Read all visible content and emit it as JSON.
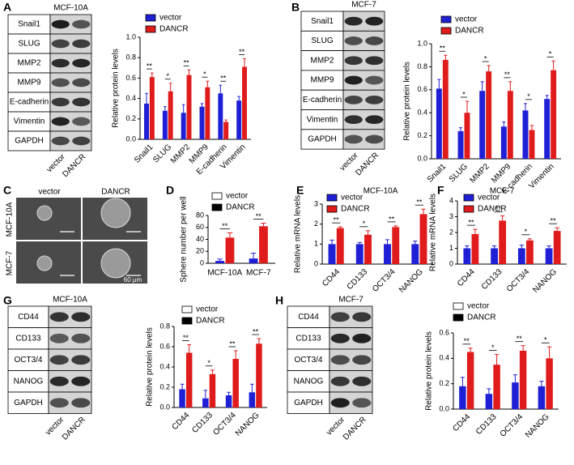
{
  "blots": [
    {
      "panel": "A",
      "title": "MCF-10A",
      "rows": [
        "Snail1",
        "SLUG",
        "MMP2",
        "MMP9",
        "E-cadherin",
        "Vimentin",
        "GAPDH"
      ],
      "lanes": [
        "vector",
        "DANCR"
      ]
    },
    {
      "panel": "B",
      "title": "MCF-7",
      "rows": [
        "Snail1",
        "SLUG",
        "MMP2",
        "MMP9",
        "E-cadherin",
        "Vimentin",
        "GAPDH"
      ],
      "lanes": [
        "vector",
        "DANCR"
      ]
    },
    {
      "panel": "G",
      "title": "MCF-10A",
      "rows": [
        "CD44",
        "CD133",
        "OCT3/4",
        "NANOG",
        "GAPDH"
      ],
      "lanes": [
        "vector",
        "DANCR"
      ]
    },
    {
      "panel": "H",
      "title": "MCF-7",
      "rows": [
        "CD44",
        "CD133",
        "OCT3/4",
        "NANOG",
        "GAPDH"
      ],
      "lanes": [
        "vector",
        "DANCR"
      ]
    }
  ],
  "images": {
    "panel": "C",
    "columns": [
      "vector",
      "DANCR"
    ],
    "rows": [
      "MCF-10A",
      "MCF-7"
    ],
    "scale_bar": "60 μm"
  },
  "chart_data": [
    {
      "type": "bar",
      "ylabel": "Relative protein levels",
      "rotated_labels": true,
      "categories": [
        "Snail1",
        "SLUG",
        "MMP2",
        "MMP9",
        "E-cadherin",
        "Vimentin"
      ],
      "series": [
        {
          "name": "vector",
          "color": "#1f1fd6",
          "values": [
            0.35,
            0.28,
            0.26,
            0.32,
            0.45,
            0.38
          ],
          "errors": [
            0.1,
            0.04,
            0.08,
            0.03,
            0.08,
            0.04
          ]
        },
        {
          "name": "DANCR",
          "color": "#e01b1b",
          "values": [
            0.61,
            0.47,
            0.63,
            0.51,
            0.17,
            0.71
          ],
          "errors": [
            0.04,
            0.08,
            0.05,
            0.06,
            0.02,
            0.08
          ]
        }
      ],
      "significance": [
        "**",
        "*",
        "**",
        "*",
        "**",
        "**"
      ],
      "ylim": [
        0,
        1
      ],
      "yticks": [
        {
          "value": 0,
          "label": "0.0"
        },
        0.2,
        0.4,
        0.6,
        0.8,
        {
          "value": 1,
          "label": "1.0"
        }
      ]
    },
    {
      "type": "bar",
      "ylabel": "Relative protein levels",
      "rotated_labels": true,
      "categories": [
        "Snail1",
        "SLUG",
        "MMP2",
        "MMP9",
        "E-cadherin",
        "Vimentin"
      ],
      "series": [
        {
          "name": "vector",
          "color": "#1f1fd6",
          "values": [
            0.61,
            0.24,
            0.59,
            0.28,
            0.42,
            0.52
          ],
          "errors": [
            0.08,
            0.03,
            0.08,
            0.04,
            0.06,
            0.03
          ]
        },
        {
          "name": "DANCR",
          "color": "#e01b1b",
          "values": [
            0.86,
            0.4,
            0.76,
            0.59,
            0.25,
            0.77
          ],
          "errors": [
            0.04,
            0.1,
            0.05,
            0.08,
            0.04,
            0.08
          ]
        }
      ],
      "significance": [
        "**",
        "*",
        "*",
        "**",
        "*",
        "*"
      ],
      "ylim": [
        0,
        1
      ],
      "yticks": [
        {
          "value": 0,
          "label": "0.0"
        },
        0.2,
        0.4,
        0.6,
        0.8,
        {
          "value": 1,
          "label": "1.0"
        }
      ]
    },
    {
      "type": "bar",
      "panel": "D",
      "ylabel": "Sphere number per well",
      "rotated_labels": false,
      "categories": [
        "MCF-10A",
        "MCF-7"
      ],
      "series": [
        {
          "name": "vector",
          "color": "#1f1fd6",
          "legend_color": "#ffffff",
          "values": [
            4,
            8
          ],
          "errors": [
            3,
            9
          ]
        },
        {
          "name": "DANCR",
          "color": "#e01b1b",
          "legend_color": "#000000",
          "values": [
            43,
            62
          ],
          "errors": [
            8,
            5
          ]
        }
      ],
      "significance": [
        "**",
        "**"
      ],
      "ylim": [
        0,
        80
      ],
      "yticks": [
        0,
        20,
        40,
        60,
        80
      ]
    },
    {
      "type": "bar",
      "panel": "E",
      "title": "MCF-10A",
      "ylabel": "Relative mRNA levels",
      "rotated_labels": true,
      "categories": [
        "CD44",
        "CD133",
        "OCT3/4",
        "NANOG"
      ],
      "series": [
        {
          "name": "vector",
          "color": "#1f1fd6",
          "values": [
            1,
            1,
            1,
            1
          ],
          "errors": [
            0.2,
            0.08,
            0.22,
            0.15
          ]
        },
        {
          "name": "DANCR",
          "color": "#e01b1b",
          "values": [
            1.8,
            1.47,
            1.85,
            2.5
          ],
          "errors": [
            0.06,
            0.2,
            0.06,
            0.25
          ]
        }
      ],
      "significance": [
        "**",
        "*",
        "**",
        "**"
      ],
      "ylim": [
        0,
        3
      ],
      "yticks": [
        0,
        1,
        2,
        3
      ]
    },
    {
      "type": "bar",
      "panel": "F",
      "title": "MCF-7",
      "ylabel": "Relative mRNA levels",
      "rotated_labels": true,
      "categories": [
        "CD44",
        "CD133",
        "OCT3/4",
        "NANOG"
      ],
      "series": [
        {
          "name": "vector",
          "color": "#1f1fd6",
          "values": [
            1,
            1,
            1,
            1
          ],
          "errors": [
            0.15,
            0.15,
            0.2,
            0.15
          ]
        },
        {
          "name": "DANCR",
          "color": "#e01b1b",
          "values": [
            1.9,
            2.75,
            1.5,
            2.1
          ],
          "errors": [
            0.3,
            0.3,
            0.1,
            0.2
          ]
        }
      ],
      "significance": [
        "**",
        "**",
        "*",
        "**"
      ],
      "ylim": [
        0,
        4
      ],
      "yticks": [
        0,
        1,
        2,
        3,
        4
      ]
    },
    {
      "type": "bar",
      "ylabel": "Relative protein levels",
      "rotated_labels": true,
      "categories": [
        "CD44",
        "CD133",
        "OCT3/4",
        "NANOG"
      ],
      "series": [
        {
          "name": "vector",
          "color": "#1f1fd6",
          "legend_color": "#ffffff",
          "values": [
            0.18,
            0.09,
            0.12,
            0.15
          ],
          "errors": [
            0.05,
            0.08,
            0.03,
            0.08
          ]
        },
        {
          "name": "DANCR",
          "color": "#e01b1b",
          "legend_color": "#000000",
          "values": [
            0.54,
            0.33,
            0.48,
            0.63
          ],
          "errors": [
            0.08,
            0.04,
            0.08,
            0.05
          ]
        }
      ],
      "significance": [
        "**",
        "*",
        "**",
        "**"
      ],
      "ylim": [
        0,
        0.8
      ],
      "yticks": [
        {
          "value": 0,
          "label": "0.0"
        },
        0.2,
        0.4,
        0.6,
        0.8
      ]
    },
    {
      "type": "bar",
      "ylabel": "Relative protein levels",
      "rotated_labels": true,
      "categories": [
        "CD44",
        "CD133",
        "OCT3/4",
        "NANOG"
      ],
      "series": [
        {
          "name": "vector",
          "color": "#1f1fd6",
          "legend_color": "#ffffff",
          "values": [
            0.18,
            0.12,
            0.21,
            0.18
          ],
          "errors": [
            0.07,
            0.04,
            0.06,
            0.04
          ]
        },
        {
          "name": "DANCR",
          "color": "#e01b1b",
          "legend_color": "#000000",
          "values": [
            0.45,
            0.35,
            0.46,
            0.4
          ],
          "errors": [
            0.03,
            0.08,
            0.04,
            0.09
          ]
        }
      ],
      "significance": [
        "**",
        "*",
        "**",
        "*"
      ],
      "ylim": [
        0,
        0.6
      ],
      "yticks": [
        {
          "value": 0,
          "label": "0.0"
        },
        0.2,
        0.4,
        0.6
      ]
    }
  ]
}
